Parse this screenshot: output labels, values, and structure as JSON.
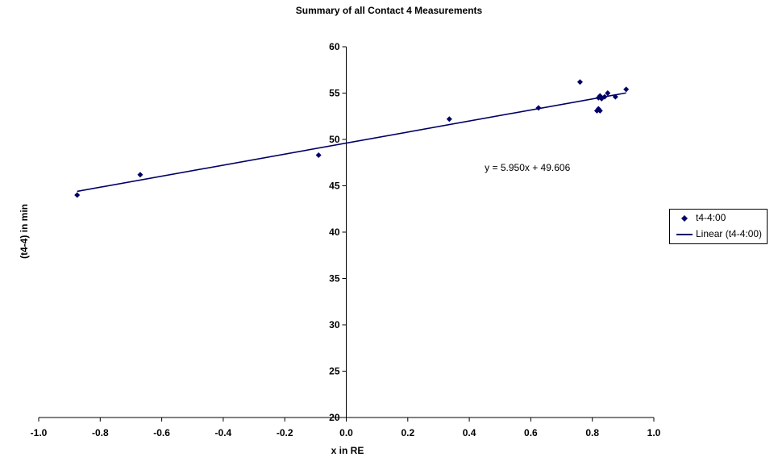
{
  "chart_data": {
    "type": "scatter",
    "title": "Summary of all Contact 4 Measurements",
    "xlabel": "x in RE",
    "ylabel": "(t4-4) in min",
    "xlim": [
      -1.0,
      1.0
    ],
    "ylim": [
      20,
      60
    ],
    "xticks": [
      "-1.0",
      "-0.8",
      "-0.6",
      "-0.4",
      "-0.2",
      "0.0",
      "0.2",
      "0.4",
      "0.6",
      "0.8",
      "1.0"
    ],
    "yticks": [
      "20",
      "25",
      "30",
      "35",
      "40",
      "45",
      "50",
      "55",
      "60"
    ],
    "grid": false,
    "legend_position": "right",
    "series": [
      {
        "name": "t4-4:00",
        "color": "#000066",
        "marker": "diamond",
        "points": [
          {
            "x": -0.875,
            "y": 44.0
          },
          {
            "x": -0.67,
            "y": 46.2
          },
          {
            "x": -0.09,
            "y": 48.3
          },
          {
            "x": 0.335,
            "y": 52.2
          },
          {
            "x": 0.625,
            "y": 53.4
          },
          {
            "x": 0.76,
            "y": 56.2
          },
          {
            "x": 0.815,
            "y": 53.1
          },
          {
            "x": 0.82,
            "y": 53.3
          },
          {
            "x": 0.825,
            "y": 53.1
          },
          {
            "x": 0.82,
            "y": 54.5
          },
          {
            "x": 0.825,
            "y": 54.7
          },
          {
            "x": 0.83,
            "y": 54.4
          },
          {
            "x": 0.84,
            "y": 54.6
          },
          {
            "x": 0.85,
            "y": 55.0
          },
          {
            "x": 0.875,
            "y": 54.6
          },
          {
            "x": 0.91,
            "y": 55.4
          }
        ]
      }
    ],
    "trendline": {
      "name": "Linear (t4-4:00)",
      "color": "#000066",
      "slope": 5.95,
      "intercept": 49.606,
      "x_range": [
        -0.875,
        0.91
      ],
      "equation": "y = 5.950x + 49.606"
    }
  }
}
